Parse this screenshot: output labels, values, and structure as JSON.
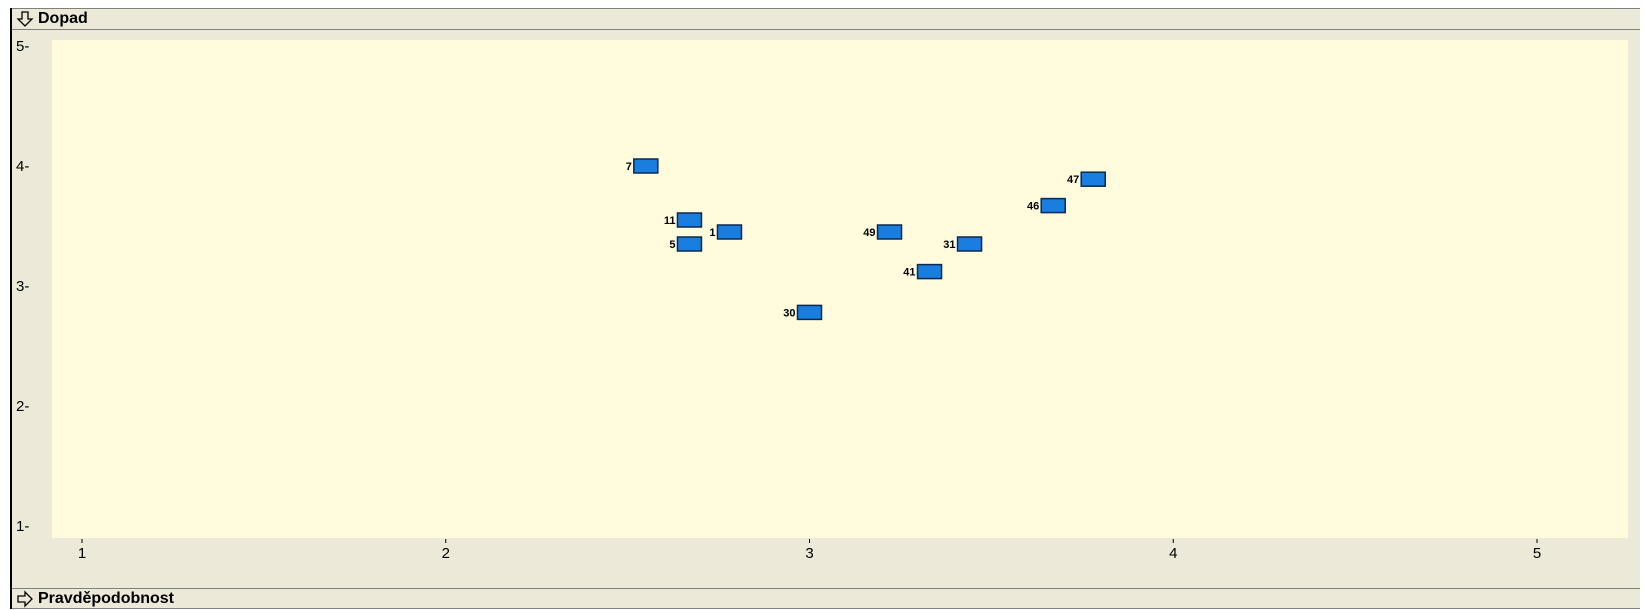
{
  "top_bar": {
    "label": "Dopad",
    "icon": "arrow-down-icon"
  },
  "bottom_bar": {
    "label": "Pravděpodobnost",
    "icon": "arrow-right-icon"
  },
  "colors": {
    "plot_bg": "#fffbdc",
    "marker": "#1a7de0",
    "marker_border": "#0a2a50"
  },
  "chart_data": {
    "type": "scatter",
    "title": "",
    "xlabel": "Pravděpodobnost",
    "ylabel": "Dopad",
    "xlim": [
      1,
      5
    ],
    "ylim": [
      1,
      5
    ],
    "x_ticks": [
      "1",
      "2",
      "3",
      "4",
      "5"
    ],
    "y_ticks": [
      "1",
      "2",
      "3",
      "4",
      "5"
    ],
    "grid": false,
    "points": [
      {
        "label": "7",
        "x": 2.55,
        "y": 4.0
      },
      {
        "label": "11",
        "x": 2.67,
        "y": 3.55
      },
      {
        "label": "1",
        "x": 2.78,
        "y": 3.45
      },
      {
        "label": "5",
        "x": 2.67,
        "y": 3.35
      },
      {
        "label": "30",
        "x": 3.0,
        "y": 2.78
      },
      {
        "label": "49",
        "x": 3.22,
        "y": 3.45
      },
      {
        "label": "41",
        "x": 3.33,
        "y": 3.12
      },
      {
        "label": "31",
        "x": 3.44,
        "y": 3.35
      },
      {
        "label": "46",
        "x": 3.67,
        "y": 3.67
      },
      {
        "label": "47",
        "x": 3.78,
        "y": 3.89
      }
    ]
  }
}
